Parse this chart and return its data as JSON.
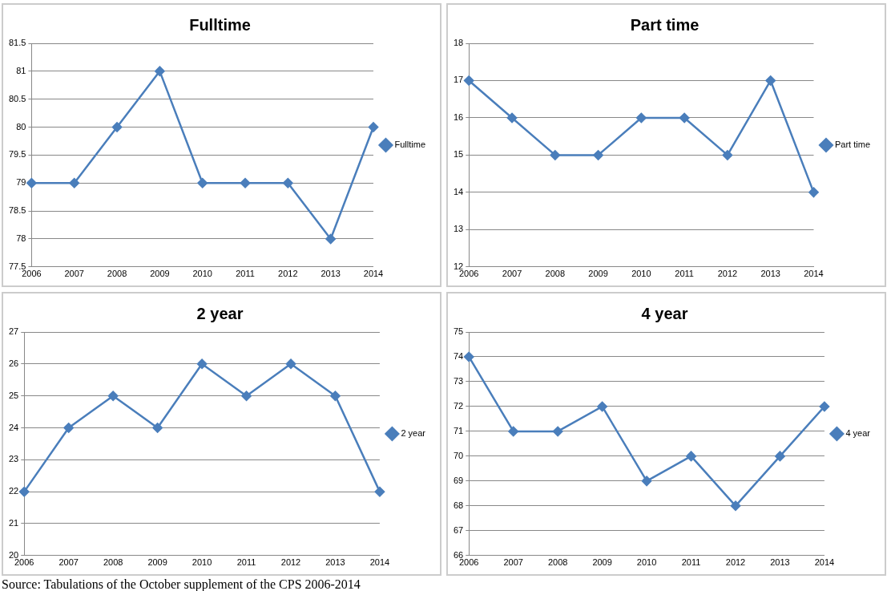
{
  "chart_data": [
    {
      "type": "line",
      "title": "Fulltime",
      "categories": [
        "2006",
        "2007",
        "2008",
        "2009",
        "2010",
        "2011",
        "2012",
        "2013",
        "2014"
      ],
      "series": [
        {
          "name": "Fulltime",
          "color": "#4a7ebb",
          "values": [
            79,
            79,
            80,
            81,
            79,
            79,
            79,
            78,
            80
          ]
        }
      ],
      "ylim": [
        77.5,
        81.5
      ],
      "yticks": [
        77.5,
        78,
        78.5,
        79,
        79.5,
        80,
        80.5,
        81,
        81.5
      ],
      "grid": "y",
      "legend": "right",
      "marker": "diamond"
    },
    {
      "type": "line",
      "title": "Part time",
      "categories": [
        "2006",
        "2007",
        "2008",
        "2009",
        "2010",
        "2011",
        "2012",
        "2013",
        "2014"
      ],
      "series": [
        {
          "name": "Part time",
          "color": "#4a7ebb",
          "values": [
            17,
            16,
            15,
            15,
            16,
            16,
            15,
            17,
            14
          ]
        }
      ],
      "ylim": [
        12,
        18
      ],
      "yticks": [
        12,
        13,
        14,
        15,
        16,
        17,
        18
      ],
      "grid": "y",
      "legend": "right",
      "marker": "diamond"
    },
    {
      "type": "line",
      "title": "2 year",
      "categories": [
        "2006",
        "2007",
        "2008",
        "2009",
        "2010",
        "2011",
        "2012",
        "2013",
        "2014"
      ],
      "series": [
        {
          "name": "2 year",
          "color": "#4a7ebb",
          "values": [
            22,
            24,
            25,
            24,
            26,
            25,
            26,
            25,
            22
          ]
        }
      ],
      "ylim": [
        20,
        27
      ],
      "yticks": [
        20,
        21,
        22,
        23,
        24,
        25,
        26,
        27
      ],
      "grid": "y",
      "legend": "right",
      "marker": "diamond",
      "annotations": [
        "Source: Tabulations of the October supplement of the CPS 2006-2014"
      ]
    },
    {
      "type": "line",
      "title": "4 year",
      "categories": [
        "2006",
        "2007",
        "2008",
        "2009",
        "2010",
        "2011",
        "2012",
        "2013",
        "2014"
      ],
      "series": [
        {
          "name": "4 year",
          "color": "#4a7ebb",
          "values": [
            74,
            71,
            71,
            72,
            69,
            70,
            68,
            70,
            72
          ]
        }
      ],
      "ylim": [
        66,
        75
      ],
      "yticks": [
        66,
        67,
        68,
        69,
        70,
        71,
        72,
        73,
        74,
        75
      ],
      "grid": "y",
      "legend": "right",
      "marker": "diamond"
    }
  ]
}
